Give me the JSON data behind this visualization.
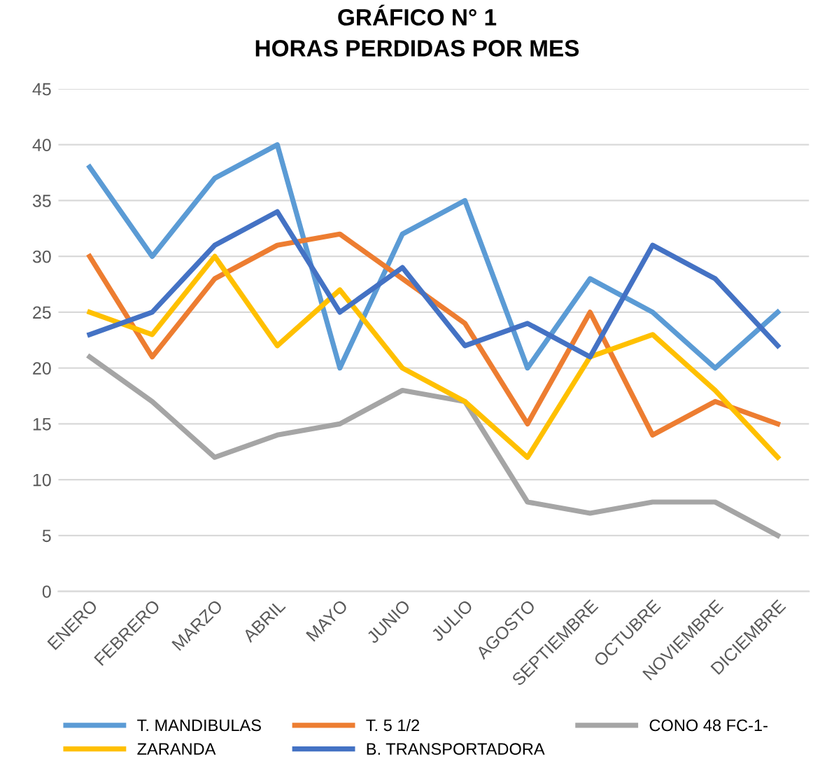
{
  "chart_data": {
    "type": "line",
    "title": "GRÁFICO N° 1",
    "subtitle": "HORAS PERDIDAS POR MES",
    "categories": [
      "ENERO",
      "FEBRERO",
      "MARZO",
      "ABRIL",
      "MAYO",
      "JUNIO",
      "JULIO",
      "AGOSTO",
      "SEPTIEMBRE",
      "OCTUBRE",
      "NOVIEMBRE",
      "DICIEMBRE"
    ],
    "series": [
      {
        "name": "T. MANDIBULAS",
        "color": "#5b9bd5",
        "values": [
          38,
          30,
          37,
          40,
          20,
          32,
          35,
          20,
          28,
          25,
          20,
          25
        ]
      },
      {
        "name": "T. 5 1/2",
        "color": "#ed7d31",
        "values": [
          30,
          21,
          28,
          31,
          32,
          28,
          24,
          15,
          25,
          14,
          17,
          15
        ]
      },
      {
        "name": "CONO 48 FC-1-",
        "color": "#a5a5a5",
        "values": [
          21,
          17,
          12,
          14,
          15,
          18,
          17,
          8,
          7,
          8,
          8,
          5
        ]
      },
      {
        "name": "ZARANDA",
        "color": "#ffc000",
        "values": [
          25,
          23,
          30,
          22,
          27,
          20,
          17,
          12,
          21,
          23,
          18,
          12
        ]
      },
      {
        "name": "B. TRANSPORTADORA",
        "color": "#4472c4",
        "values": [
          23,
          25,
          31,
          34,
          25,
          29,
          22,
          24,
          21,
          31,
          28,
          22
        ]
      }
    ],
    "ylim": [
      0,
      45
    ],
    "yticks": [
      0,
      5,
      10,
      15,
      20,
      25,
      30,
      35,
      40,
      45
    ],
    "grid": "y",
    "legend": "bottom",
    "marker": "none",
    "line_style": "solid"
  }
}
